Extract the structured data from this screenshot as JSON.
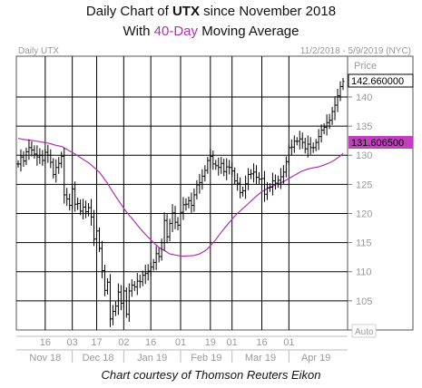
{
  "title": {
    "line1_pre": "Daily Chart of ",
    "line1_ticker": "UTX",
    "line1_post": " since November 2018",
    "line2_pre": "With ",
    "line2_highlight": "40-Day",
    "line2_post": " Moving Average"
  },
  "credit": "Chart courtesy of Thomson Reuters Eikon",
  "chart_data": {
    "type": "ohlc",
    "header_left": "Daily UTX",
    "header_right": "11/2/2018 - 5/9/2019 (NYC)",
    "price_label": "Price",
    "auto_label": "Auto",
    "ylim": [
      100,
      147
    ],
    "yticks": [
      105,
      110,
      115,
      120,
      125,
      130,
      135,
      140
    ],
    "price_flag": "142.660000",
    "ma_flag": "131.606500",
    "colors": {
      "price": "#000000",
      "ma": "#b030b0",
      "flag_price_bg": "#ffffff",
      "flag_ma_bg": "#c040c0",
      "grid": "#000000"
    },
    "x_day_labels": [
      "16",
      "03",
      "17",
      "02",
      "16",
      "01",
      "19",
      "01",
      "16",
      "01"
    ],
    "x_month_labels": [
      "Nov 18",
      "Dec 18",
      "Jan 19",
      "Feb 19",
      "Mar 19",
      "Apr 19"
    ],
    "series": [
      {
        "name": "UTX",
        "dates": [
          "2018-11-02",
          "2018-11-05",
          "2018-11-06",
          "2018-11-07",
          "2018-11-08",
          "2018-11-09",
          "2018-11-12",
          "2018-11-13",
          "2018-11-14",
          "2018-11-15",
          "2018-11-16",
          "2018-11-19",
          "2018-11-20",
          "2018-11-21",
          "2018-11-23",
          "2018-11-26",
          "2018-11-27",
          "2018-11-28",
          "2018-11-29",
          "2018-11-30",
          "2018-12-03",
          "2018-12-04",
          "2018-12-06",
          "2018-12-07",
          "2018-12-10",
          "2018-12-11",
          "2018-12-12",
          "2018-12-13",
          "2018-12-14",
          "2018-12-17",
          "2018-12-18",
          "2018-12-19",
          "2018-12-20",
          "2018-12-21",
          "2018-12-24",
          "2018-12-26",
          "2018-12-27",
          "2018-12-28",
          "2018-12-31",
          "2019-01-02",
          "2019-01-03",
          "2019-01-04",
          "2019-01-07",
          "2019-01-08",
          "2019-01-09",
          "2019-01-10",
          "2019-01-11",
          "2019-01-14",
          "2019-01-15",
          "2019-01-16",
          "2019-01-17",
          "2019-01-18",
          "2019-01-22",
          "2019-01-23",
          "2019-01-24",
          "2019-01-25",
          "2019-01-28",
          "2019-01-29",
          "2019-01-30",
          "2019-01-31",
          "2019-02-01",
          "2019-02-04",
          "2019-02-05",
          "2019-02-06",
          "2019-02-07",
          "2019-02-08",
          "2019-02-11",
          "2019-02-12",
          "2019-02-13",
          "2019-02-14",
          "2019-02-15",
          "2019-02-19",
          "2019-02-20",
          "2019-02-21",
          "2019-02-22",
          "2019-02-25",
          "2019-02-26",
          "2019-02-27",
          "2019-02-28",
          "2019-03-01",
          "2019-03-04",
          "2019-03-05",
          "2019-03-06",
          "2019-03-07",
          "2019-03-08",
          "2019-03-11",
          "2019-03-12",
          "2019-03-13",
          "2019-03-14",
          "2019-03-15",
          "2019-03-18",
          "2019-03-19",
          "2019-03-20",
          "2019-03-21",
          "2019-03-22",
          "2019-03-25",
          "2019-03-26",
          "2019-03-27",
          "2019-03-28",
          "2019-03-29",
          "2019-04-01",
          "2019-04-02",
          "2019-04-03",
          "2019-04-04",
          "2019-04-05",
          "2019-04-08",
          "2019-04-09",
          "2019-04-10",
          "2019-04-11",
          "2019-04-12",
          "2019-04-15",
          "2019-04-16",
          "2019-04-17",
          "2019-04-18",
          "2019-04-22",
          "2019-04-23",
          "2019-04-24",
          "2019-04-25",
          "2019-04-26",
          "2019-04-29",
          "2019-04-30"
        ],
        "close": [
          128.5,
          129.7,
          129.0,
          130.6,
          131.3,
          130.9,
          130.2,
          129.7,
          130.0,
          129.1,
          130.5,
          130.0,
          128.8,
          126.7,
          127.9,
          128.6,
          129.8,
          123.2,
          122.5,
          121.4,
          124.2,
          121.6,
          121.7,
          120.4,
          121.1,
          120.3,
          121.0,
          119.4,
          115.6,
          117.0,
          114.0,
          110.2,
          106.8,
          108.2,
          101.9,
          103.2,
          104.1,
          106.5,
          104.6,
          106.7,
          102.7,
          106.7,
          107.7,
          107.4,
          108.4,
          108.3,
          109.4,
          109.7,
          110.1,
          110.8,
          111.6,
          113.1,
          112.6,
          115.0,
          118.8,
          116.0,
          118.3,
          120.1,
          118.5,
          118.0,
          120.2,
          121.5,
          121.6,
          122.2,
          121.4,
          123.2,
          124.9,
          125.3,
          126.4,
          127.4,
          129.1,
          129.8,
          128.5,
          128.2,
          127.9,
          128.6,
          127.2,
          128.0,
          127.9,
          127.3,
          125.6,
          125.2,
          123.6,
          123.9,
          125.1,
          126.7,
          126.8,
          127.1,
          126.2,
          125.9,
          126.0,
          123.3,
          124.4,
          124.5,
          125.6,
          125.2,
          125.7,
          126.3,
          127.1,
          128.9,
          131.3,
          131.4,
          132.4,
          132.4,
          132.8,
          132.2,
          131.1,
          131.9,
          131.3,
          131.3,
          132.2,
          133.2,
          134.3,
          134.8,
          135.6,
          136.0,
          137.5,
          138.6,
          140.2,
          141.8,
          142.66
        ]
      }
    ]
  }
}
